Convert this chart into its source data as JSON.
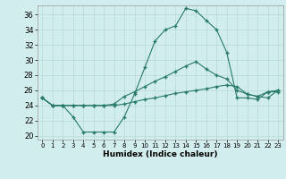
{
  "xlabel": "Humidex (Indice chaleur)",
  "xlim": [
    -0.5,
    23.5
  ],
  "ylim": [
    19.5,
    37.2
  ],
  "yticks": [
    20,
    22,
    24,
    26,
    28,
    30,
    32,
    34,
    36
  ],
  "xticks": [
    0,
    1,
    2,
    3,
    4,
    5,
    6,
    7,
    8,
    9,
    10,
    11,
    12,
    13,
    14,
    15,
    16,
    17,
    18,
    19,
    20,
    21,
    22,
    23
  ],
  "xtick_labels": [
    "0",
    "1",
    "2",
    "3",
    "4",
    "5",
    "6",
    "7",
    "8",
    "9",
    "10",
    "11",
    "12",
    "13",
    "14",
    "15",
    "16",
    "17",
    "18",
    "19",
    "20",
    "21",
    "22",
    "23"
  ],
  "line_color": "#2a7a6a",
  "bg_color": "#d2eded",
  "grid_color": "#b8d8d8",
  "line1": [
    25.0,
    24.0,
    24.0,
    22.5,
    20.5,
    20.5,
    20.5,
    20.5,
    22.5,
    25.5,
    29.0,
    32.5,
    34.0,
    34.5,
    36.8,
    36.5,
    35.2,
    34.0,
    31.0,
    25.0,
    25.0,
    24.8,
    25.8,
    25.8
  ],
  "line2": [
    25.0,
    24.0,
    24.0,
    24.0,
    24.0,
    24.0,
    24.0,
    24.2,
    25.2,
    25.8,
    26.5,
    27.2,
    27.8,
    28.5,
    29.2,
    29.8,
    28.8,
    28.0,
    27.5,
    26.0,
    25.5,
    25.2,
    25.8,
    26.0
  ],
  "line3": [
    25.0,
    24.0,
    24.0,
    24.0,
    24.0,
    24.0,
    24.0,
    24.0,
    24.2,
    24.5,
    24.8,
    25.0,
    25.3,
    25.6,
    25.8,
    26.0,
    26.2,
    26.5,
    26.7,
    26.5,
    25.5,
    25.2,
    25.0,
    26.0
  ]
}
